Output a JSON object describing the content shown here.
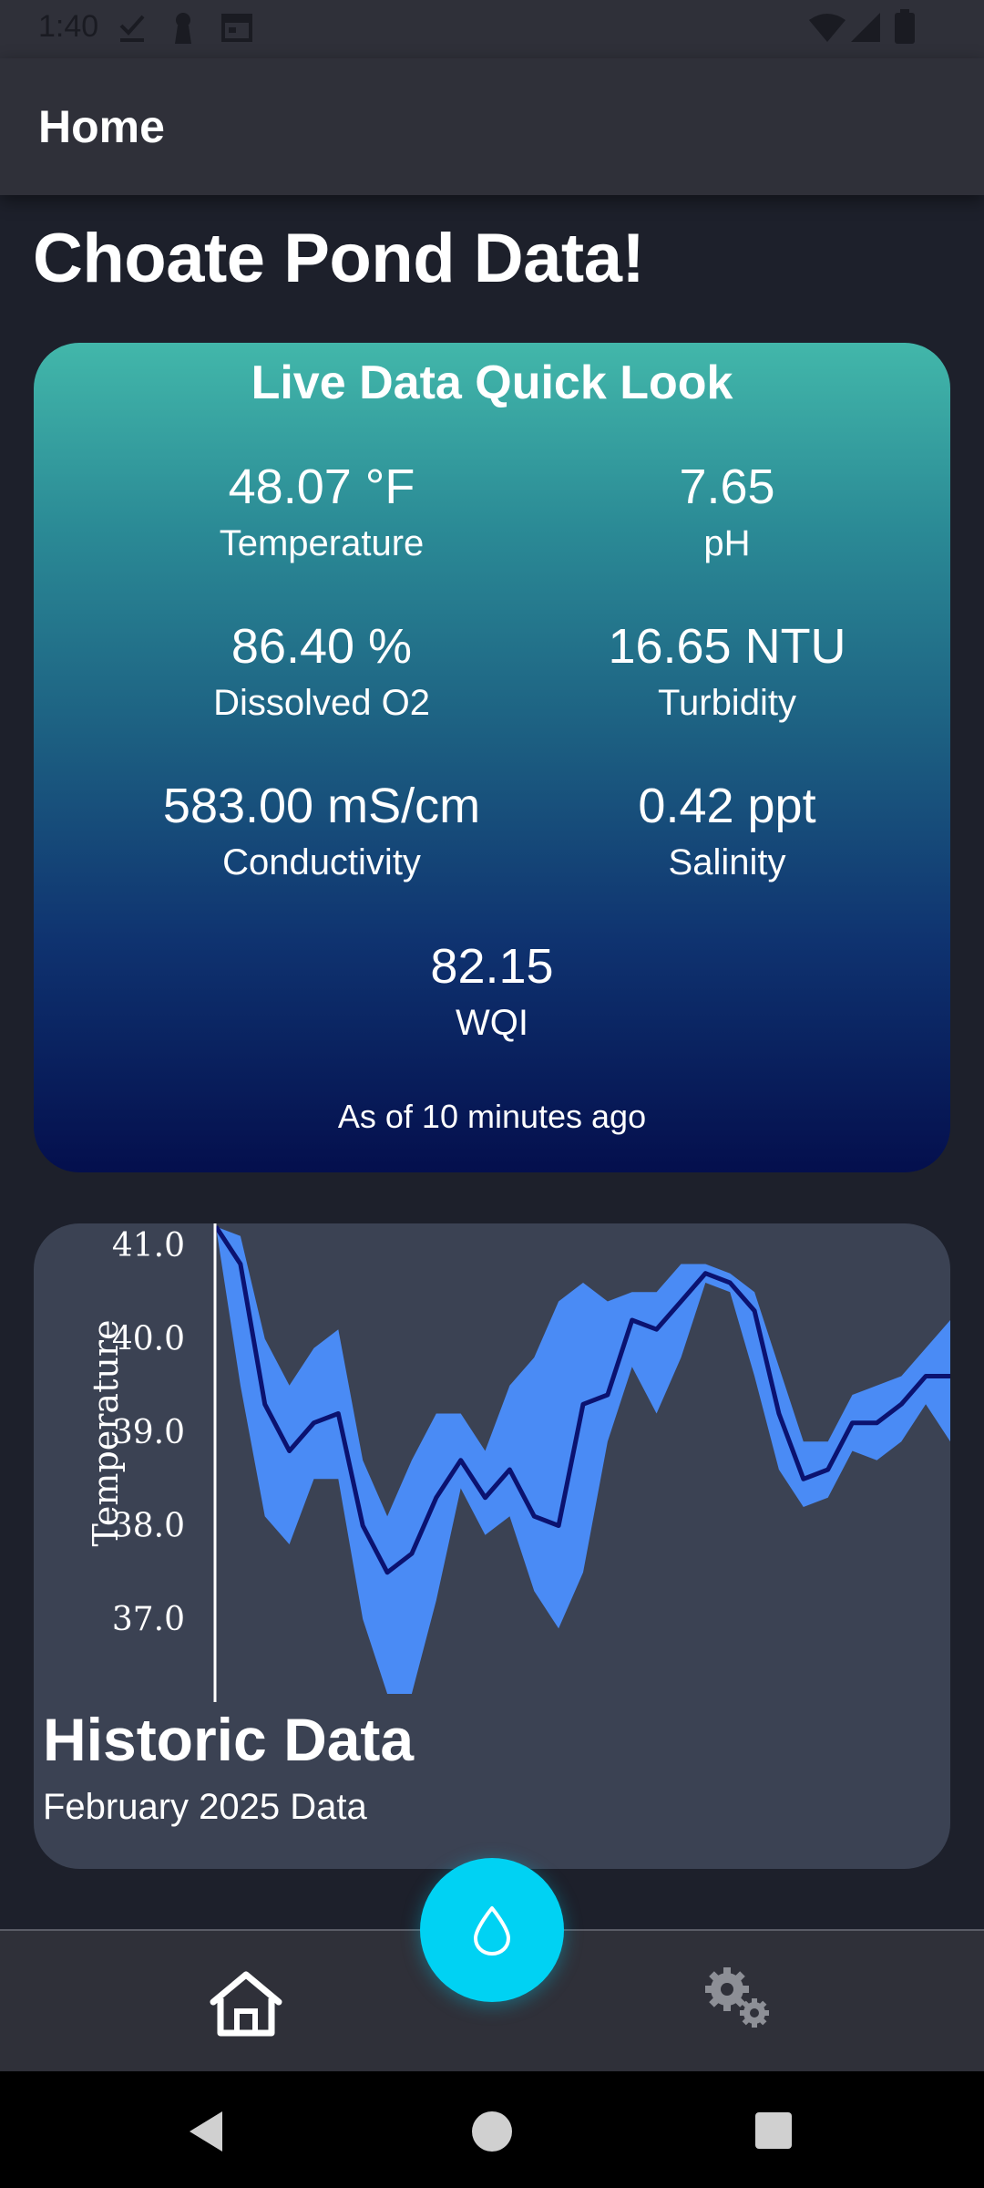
{
  "status_bar": {
    "time": "1:40"
  },
  "app_bar": {
    "title": "Home"
  },
  "page": {
    "title": "Choate Pond Data!"
  },
  "live_card": {
    "title": "Live Data Quick Look",
    "metrics": [
      {
        "value": "48.07 °F",
        "label": "Temperature"
      },
      {
        "value": "7.65",
        "label": "pH"
      },
      {
        "value": "86.40 %",
        "label": "Dissolved O2"
      },
      {
        "value": "16.65 NTU",
        "label": "Turbidity"
      },
      {
        "value": "583.00 mS/cm",
        "label": "Conductivity"
      },
      {
        "value": "0.42 ppt",
        "label": "Salinity"
      },
      {
        "value": "82.15",
        "label": "WQI"
      }
    ],
    "updated": "As of 10 minutes ago"
  },
  "historic_card": {
    "title": "Historic Data",
    "subtitle": "February 2025 Data"
  },
  "chart_data": {
    "type": "line",
    "title": "",
    "ylabel": "Temperature",
    "y_ticks": [
      "41.0",
      "40.0",
      "39.0",
      "38.0",
      "37.0"
    ],
    "ylim": [
      36.2,
      41.2
    ],
    "series": [
      {
        "values": [
          41.2,
          40.8,
          39.3,
          38.8,
          39.1,
          39.2,
          38.0,
          37.5,
          37.7,
          38.3,
          38.7,
          38.3,
          38.6,
          38.1,
          38.0,
          39.3,
          39.4,
          40.2,
          40.1,
          40.4,
          40.7,
          40.6,
          40.3,
          39.2,
          38.5,
          38.6,
          39.1,
          39.1,
          39.3,
          39.6,
          39.6
        ],
        "upper": [
          41.2,
          41.1,
          40.0,
          39.5,
          39.9,
          40.1,
          38.7,
          38.1,
          38.7,
          39.2,
          39.2,
          38.8,
          39.5,
          39.8,
          40.4,
          40.6,
          40.4,
          40.5,
          40.5,
          40.8,
          40.8,
          40.7,
          40.5,
          39.7,
          38.9,
          38.9,
          39.4,
          39.5,
          39.6,
          39.9,
          40.2
        ],
        "lower": [
          41.2,
          39.5,
          38.1,
          37.8,
          38.5,
          38.5,
          37.0,
          36.2,
          36.2,
          37.2,
          38.4,
          37.9,
          38.1,
          37.3,
          36.9,
          37.5,
          38.9,
          39.7,
          39.2,
          39.8,
          40.6,
          40.5,
          39.6,
          38.6,
          38.2,
          38.3,
          38.8,
          38.7,
          38.9,
          39.3,
          38.9
        ]
      }
    ],
    "colors": {
      "line": "#0b1270",
      "band": "#4a8bf5",
      "background": "#3b4253"
    }
  }
}
